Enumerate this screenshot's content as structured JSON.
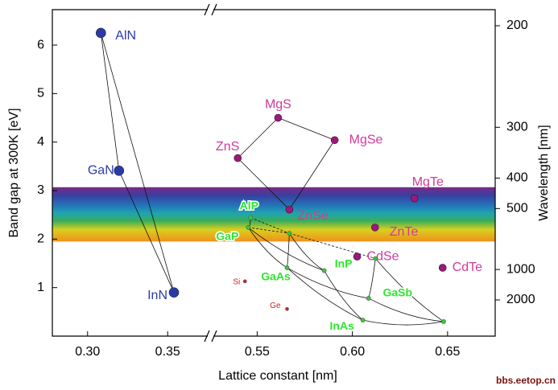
{
  "chart_data": {
    "type": "scatter",
    "xlabel": "Lattice constant [nm]",
    "ylabel": "Band gap at 300K [eV]",
    "y2label": "Wavelength [nm]",
    "watermark": "bbs.eetop.cn",
    "xlim": [
      0.278,
      0.675
    ],
    "xbreak": [
      0.375,
      0.527
    ],
    "xticks": [
      {
        "value": 0.3,
        "label": "0.30"
      },
      0.35,
      0.55,
      {
        "value": 0.6,
        "label": "0.60"
      },
      0.65
    ],
    "ylim": [
      0,
      6.73
    ],
    "yticks": [
      1,
      2,
      3,
      4,
      5,
      6
    ],
    "y2scale": "reciprocal",
    "y2lim": [
      2000,
      200
    ],
    "y2ticks": [
      200,
      300,
      400,
      500,
      1000,
      2000
    ],
    "band": [
      1.95,
      3.07
    ],
    "series": [
      {
        "color": "#2b3aa8",
        "x": [
          0.3083,
          0.3196,
          0.3539
        ],
        "values": [
          6.25,
          3.41,
          0.9
        ],
        "labels": [
          "AlN",
          "GaN",
          "InN"
        ]
      },
      {
        "color": "#a0167e",
        "x": [
          0.561,
          0.5907,
          0.5398,
          0.5669,
          0.6326,
          0.6119,
          0.6025,
          0.6474
        ],
        "values": [
          4.5,
          4.04,
          3.67,
          2.61,
          2.84,
          2.24,
          1.64,
          1.41
        ],
        "labels": [
          "MgS",
          "MgSe",
          "ZnS",
          "ZnSe",
          "MgTe",
          "ZnTe",
          "CdSe",
          "CdTe"
        ]
      },
      {
        "color": "#33cc33",
        "x": [
          0.5466,
          0.5453,
          0.5657,
          0.5852,
          0.6085,
          0.6055,
          0.5669,
          0.6121,
          0.6479
        ],
        "values": [
          2.44,
          2.24,
          1.41,
          1.35,
          0.78,
          0.33,
          2.12,
          1.6,
          0.3
        ],
        "labels": [
          "AlP",
          "GaP",
          "GaAs",
          "InP",
          "GaSb",
          "InAs",
          null,
          null,
          null
        ]
      },
      {
        "color": "#cc2222",
        "x": [
          0.5436,
          0.5657
        ],
        "values": [
          1.13,
          0.56
        ],
        "labels": [
          "Si",
          "Ge"
        ]
      }
    ]
  }
}
